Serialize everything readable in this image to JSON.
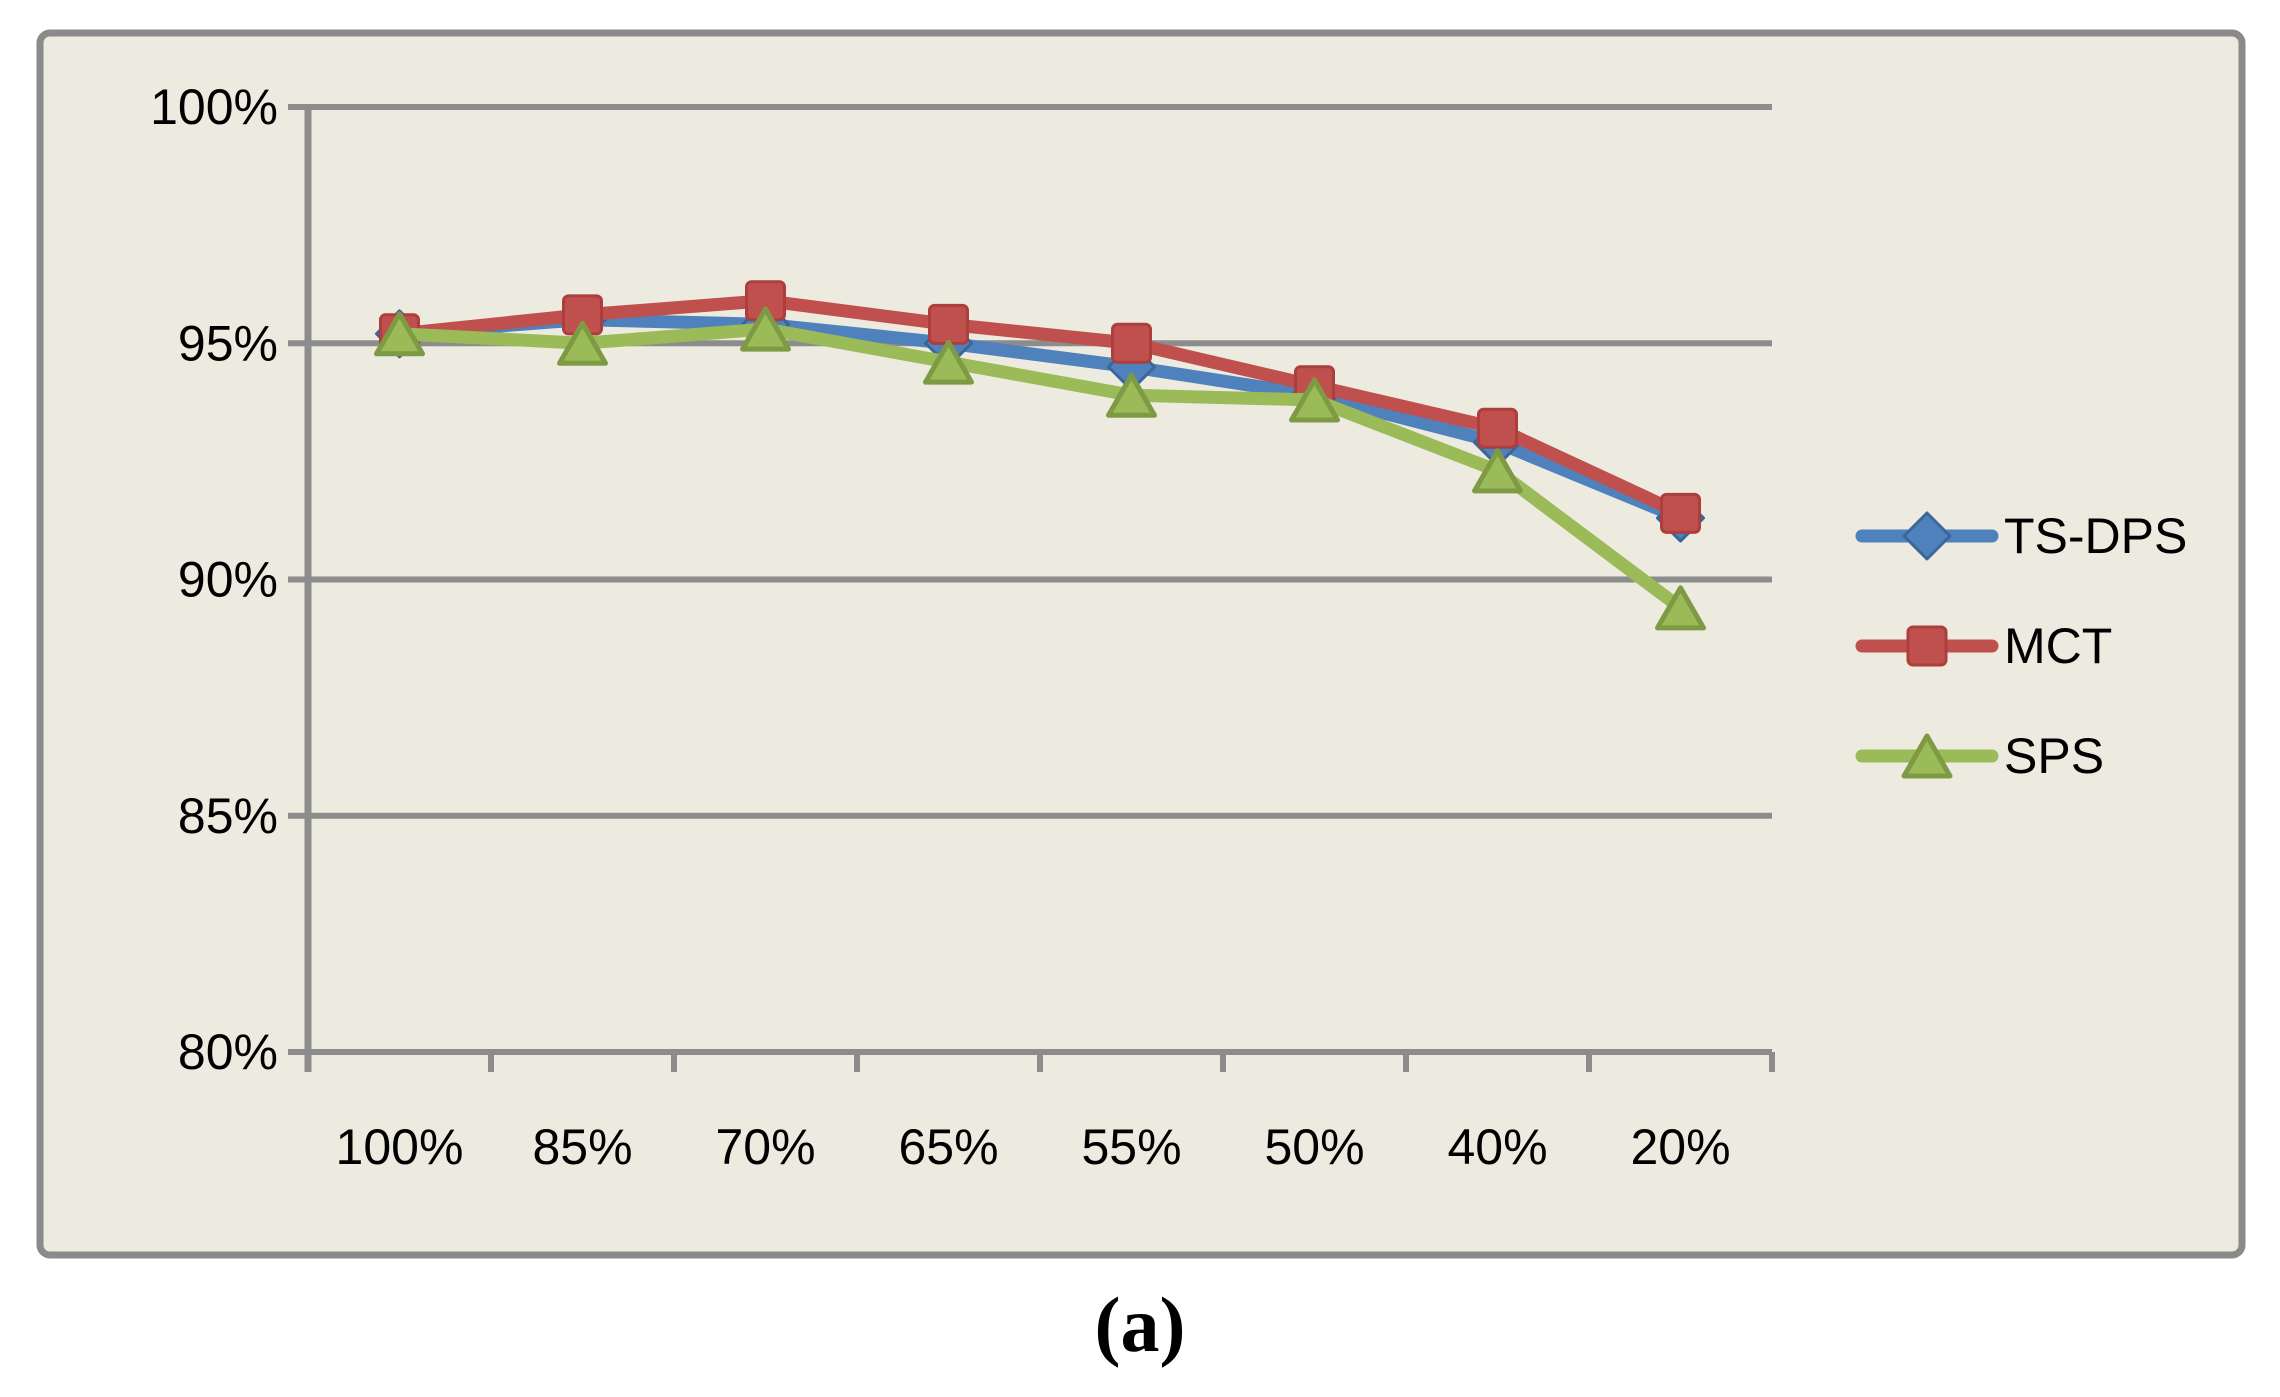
{
  "figure": {
    "caption": "(a)"
  },
  "chart_data": {
    "type": "line",
    "categories": [
      "100%",
      "85%",
      "70%",
      "65%",
      "55%",
      "50%",
      "40%",
      "20%"
    ],
    "series": [
      {
        "name": "TS-DPS",
        "marker": "diamond",
        "color": "#4F81BD",
        "marker_border": "#3A679A",
        "values": [
          95.2,
          95.5,
          95.4,
          95.0,
          94.5,
          93.9,
          92.9,
          91.3
        ]
      },
      {
        "name": "MCT",
        "marker": "square",
        "color": "#C0504D",
        "marker_border": "#AC3E3B",
        "values": [
          95.2,
          95.6,
          95.9,
          95.4,
          95.0,
          94.1,
          93.2,
          91.4
        ]
      },
      {
        "name": "SPS",
        "marker": "triangle",
        "color": "#9BBB59",
        "marker_border": "#7E9A44",
        "values": [
          95.2,
          95.0,
          95.3,
          94.6,
          93.9,
          93.8,
          92.3,
          89.4
        ]
      }
    ],
    "title": "",
    "xlabel": "",
    "ylabel": "",
    "y_tick_labels": [
      "100%",
      "95%",
      "90%",
      "85%",
      "80%"
    ],
    "y_tick_values": [
      100,
      95,
      90,
      85,
      80
    ],
    "ylim": [
      80,
      100
    ],
    "unit": "%",
    "grid": true,
    "legend_position": "right"
  },
  "style": {
    "outer_bg": "#FFFFFF",
    "plot_bg": "#EDEBE0",
    "frame_border": "#8A8A8A",
    "grid_color": "#8C8C8C",
    "axis_color": "#8C8C8C",
    "text_color": "#000000"
  }
}
